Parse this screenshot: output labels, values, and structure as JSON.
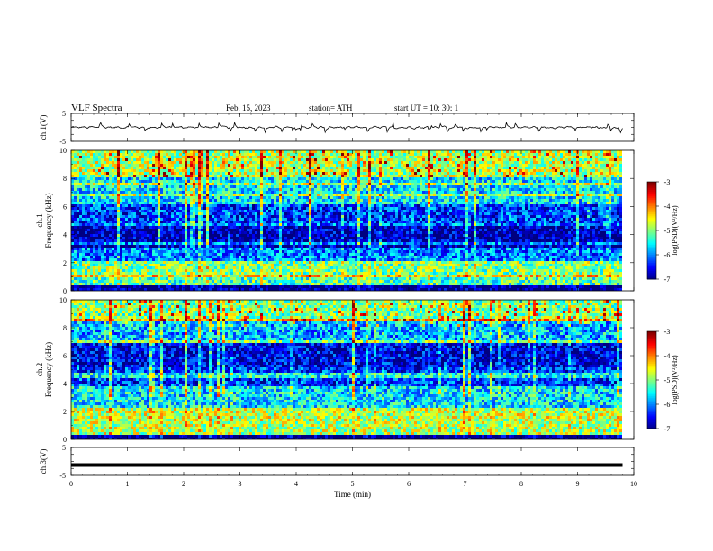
{
  "header": {
    "title": "VLF  Spectra",
    "date": "Feb. 15, 2023",
    "station": "station= ATH",
    "start": "start  UT  =    10: 30: 1"
  },
  "chart_data": [
    {
      "type": "line",
      "ylabel": "ch.1(V)",
      "ylim": [
        -5,
        5
      ],
      "yticks": [
        "5",
        "-5"
      ],
      "xlim": [
        0,
        10
      ],
      "series": [
        {
          "color": "#000000",
          "baseline": 0,
          "amplitude": 1
        }
      ]
    },
    {
      "type": "heatmap",
      "ylabel_line1": "ch.1",
      "ylabel_line2": "Frequency  (kHz)",
      "ylim": [
        0,
        10
      ],
      "yticks": [
        "0",
        "2",
        "4",
        "6",
        "8",
        "10"
      ],
      "xlim": [
        0,
        9.8
      ],
      "colorbar": {
        "label": "log(PSD)(V²/Hz)",
        "range": [
          -7,
          -3
        ],
        "ticks": [
          "-3",
          "-4",
          "-5",
          "-6",
          "-7"
        ]
      },
      "bands": [
        {
          "f": [
            0,
            0.3
          ],
          "level": -7
        },
        {
          "f": [
            0.3,
            1.2
          ],
          "level": -5.2
        },
        {
          "f": [
            1.2,
            2.2
          ],
          "level": -5.0
        },
        {
          "f": [
            2.2,
            3.0
          ],
          "level": -6.0
        },
        {
          "f": [
            3.0,
            4.8
          ],
          "level": -6.8
        },
        {
          "f": [
            4.8,
            6.2
          ],
          "level": -6.3
        },
        {
          "f": [
            6.2,
            8.0
          ],
          "level": -5.6
        },
        {
          "f": [
            8.0,
            10
          ],
          "level": -4.8
        }
      ]
    },
    {
      "type": "heatmap",
      "ylabel_line1": "ch.2",
      "ylabel_line2": "Frequency  (kHz)",
      "ylim": [
        0,
        10
      ],
      "yticks": [
        "0",
        "2",
        "4",
        "6",
        "8",
        "10"
      ],
      "xlim": [
        0,
        9.8
      ],
      "colorbar": {
        "label": "log(PSD)(V²/Hz)",
        "range": [
          -7,
          -3
        ],
        "ticks": [
          "-3",
          "-4",
          "-5",
          "-6",
          "-7"
        ]
      },
      "bands": [
        {
          "f": [
            0,
            0.3
          ],
          "level": -7
        },
        {
          "f": [
            0.3,
            1.2
          ],
          "level": -4.8
        },
        {
          "f": [
            1.2,
            2.3
          ],
          "level": -4.7
        },
        {
          "f": [
            2.3,
            3.8
          ],
          "level": -5.6
        },
        {
          "f": [
            3.8,
            5.2
          ],
          "level": -6.3
        },
        {
          "f": [
            5.2,
            7.0
          ],
          "level": -6.6
        },
        {
          "f": [
            7.0,
            8.5
          ],
          "level": -5.8
        },
        {
          "f": [
            8.5,
            10
          ],
          "level": -5.0
        }
      ]
    },
    {
      "type": "line",
      "ylabel": "ch.3(V)",
      "ylim": [
        -5,
        5
      ],
      "yticks": [
        "5",
        "-5"
      ],
      "xlim": [
        0,
        10
      ],
      "series": [
        {
          "color": "#000000",
          "baseline": -1.3,
          "amplitude": 0
        }
      ]
    }
  ],
  "x_axis": {
    "label": "Time  (min)",
    "ticks": [
      "0",
      "1",
      "2",
      "3",
      "4",
      "5",
      "6",
      "7",
      "8",
      "9",
      "10"
    ]
  }
}
